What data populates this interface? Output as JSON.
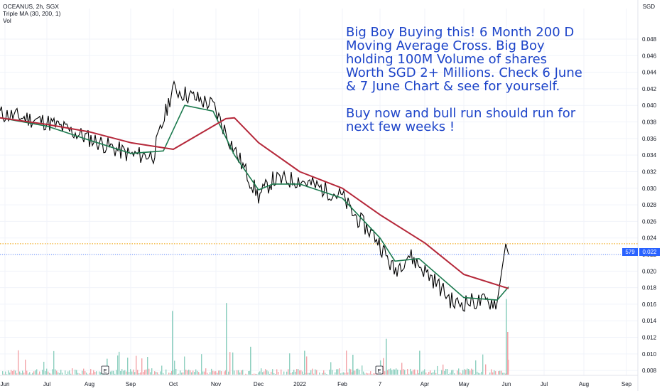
{
  "legend": {
    "symbol": "OCEANUS, 2h, SGX",
    "indicator": "Triple MA (30, 200, 1)",
    "volume": "Vol"
  },
  "currency": "SGD",
  "annotation": {
    "paragraph1": "Big Boy Buying this! 6 Month 200 D Moving Average Cross. Big Boy holding 100M Volume of shares Worth SGD 2+ Millions. Check 6 June & 7 June Chart & see for yourself.",
    "paragraph2": "Buy now and bull run should run for next few weeks !"
  },
  "badges": {
    "volume": "579",
    "price": "0.022"
  },
  "colors": {
    "price": "#000000",
    "ma_fast": "#1b7a4e",
    "ma_slow": "#b5283a",
    "annotation": "#1d44c9",
    "badge": "#2962ff",
    "dotted_high": "#f0a000",
    "volume_up": "#8fd0c0",
    "volume_down": "#f3a3a8"
  },
  "chart_data": {
    "type": "line",
    "x_ticks": [
      "Jun",
      "Jul",
      "Aug",
      "Sep",
      "Oct",
      "Nov",
      "Dec",
      "2022",
      "Feb",
      "7",
      "Apr",
      "May",
      "Jun",
      "Jul",
      "Aug",
      "Sep"
    ],
    "y_ticks": [
      "0.048",
      "0.046",
      "0.044",
      "0.042",
      "0.040",
      "0.038",
      "0.036",
      "0.034",
      "0.032",
      "0.030",
      "0.028",
      "0.026",
      "0.024",
      "0.022",
      "0.020",
      "0.018",
      "0.016",
      "0.014",
      "0.012",
      "0.010",
      "0.008"
    ],
    "ylim": [
      0.0075,
      0.0495
    ],
    "last_price": 0.022,
    "recent_high": 0.0233,
    "event_markers": [
      "E",
      "E"
    ],
    "series": [
      {
        "name": "OCEANUS, 2h, SGX",
        "points": [
          [
            "Jun",
            0.039
          ],
          [
            "Jul",
            0.038
          ],
          [
            "Aug",
            0.036
          ],
          [
            "Sep",
            0.034
          ],
          [
            "Oct",
            0.034
          ],
          [
            "Oct",
            0.042
          ],
          [
            "Nov",
            0.04
          ],
          [
            "Nov",
            0.036
          ],
          [
            "Dec",
            0.029
          ],
          [
            "Dec",
            0.031
          ],
          [
            "2022",
            0.031
          ],
          [
            "2022",
            0.03
          ],
          [
            "Feb",
            0.029
          ],
          [
            "Feb",
            0.027
          ],
          [
            "7",
            0.024
          ],
          [
            "7",
            0.02
          ],
          [
            "Apr",
            0.022
          ],
          [
            "Apr",
            0.019
          ],
          [
            "May",
            0.016
          ],
          [
            "May",
            0.0163
          ],
          [
            "Jun",
            0.0163
          ],
          [
            "Jun",
            0.0233
          ],
          [
            "Jun",
            0.022
          ]
        ]
      },
      {
        "name": "MA 30",
        "points": [
          [
            "Jun",
            0.0385
          ],
          [
            "Jul",
            0.0375
          ],
          [
            "Aug",
            0.0358
          ],
          [
            "Sep",
            0.0342
          ],
          [
            "Oct",
            0.0345
          ],
          [
            "Oct",
            0.04
          ],
          [
            "Nov",
            0.0393
          ],
          [
            "Nov",
            0.034
          ],
          [
            "Dec",
            0.0298
          ],
          [
            "Dec",
            0.0305
          ],
          [
            "2022",
            0.0305
          ],
          [
            "Feb",
            0.0288
          ],
          [
            "7",
            0.024
          ],
          [
            "7",
            0.0212
          ],
          [
            "Apr",
            0.0215
          ],
          [
            "May",
            0.0168
          ],
          [
            "Jun",
            0.0165
          ],
          [
            "Jun",
            0.0181
          ]
        ]
      },
      {
        "name": "MA 200",
        "points": [
          [
            "Jun",
            0.0385
          ],
          [
            "Jul",
            0.0377
          ],
          [
            "Aug",
            0.0368
          ],
          [
            "Sep",
            0.0355
          ],
          [
            "Oct",
            0.0347
          ],
          [
            "Nov",
            0.0384
          ],
          [
            "Nov",
            0.0385
          ],
          [
            "Dec",
            0.0355
          ],
          [
            "2022",
            0.032
          ],
          [
            "Feb",
            0.03
          ],
          [
            "7",
            0.0268
          ],
          [
            "Apr",
            0.0234
          ],
          [
            "May",
            0.0196
          ],
          [
            "Jun",
            0.0179
          ]
        ]
      }
    ],
    "volume_spikes": [
      [
        "Aug",
        0.2
      ],
      [
        "Oct",
        0.8
      ],
      [
        "Nov",
        0.9
      ],
      [
        "Dec",
        0.35
      ],
      [
        "2022",
        0.3
      ],
      [
        "Feb",
        0.25
      ],
      [
        "7",
        0.45
      ],
      [
        "Apr",
        0.3
      ],
      [
        "Jun",
        0.95
      ]
    ]
  }
}
